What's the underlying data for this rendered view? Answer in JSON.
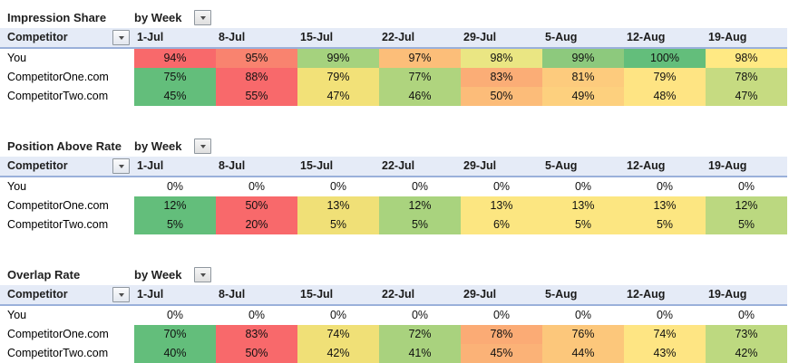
{
  "colors": {
    "header_bg": "#E5EBF7",
    "header_border": "#9AB0DA",
    "dropdown_border": "#8F979F",
    "scale_red": "#F8696B",
    "scale_yellow": "#FFEB84",
    "scale_green": "#63BE7B",
    "no_fill": "#FFFFFF"
  },
  "tables": [
    {
      "title": "Impression Share",
      "subtitle": "by Week",
      "corner_label": "Competitor",
      "columns": [
        "1-Jul",
        "8-Jul",
        "15-Jul",
        "22-Jul",
        "29-Jul",
        "5-Aug",
        "12-Aug",
        "19-Aug"
      ],
      "rows": [
        {
          "label": "You",
          "values": [
            "94%",
            "95%",
            "99%",
            "97%",
            "98%",
            "99%",
            "100%",
            "98%"
          ],
          "colors": [
            "#F8696B",
            "#F9836F",
            "#A5D27E",
            "#FCBE79",
            "#EAE683",
            "#8DC97D",
            "#63BE7B",
            "#FFE983"
          ]
        },
        {
          "label": "CompetitorOne.com",
          "values": [
            "75%",
            "88%",
            "79%",
            "77%",
            "83%",
            "81%",
            "79%",
            "78%"
          ],
          "colors": [
            "#63BE7B",
            "#F8696B",
            "#F2E178",
            "#AFD47E",
            "#FBAD76",
            "#FDCB7D",
            "#FEE483",
            "#C6DB81"
          ]
        },
        {
          "label": "CompetitorTwo.com",
          "values": [
            "45%",
            "55%",
            "47%",
            "46%",
            "50%",
            "49%",
            "48%",
            "47%"
          ],
          "colors": [
            "#63BE7B",
            "#F8696B",
            "#F2E178",
            "#AFD47E",
            "#FCBC79",
            "#FDD07E",
            "#FEE483",
            "#C6DB81"
          ]
        }
      ]
    },
    {
      "title": "Position Above Rate",
      "subtitle": "by Week",
      "corner_label": "Competitor",
      "columns": [
        "1-Jul",
        "8-Jul",
        "15-Jul",
        "22-Jul",
        "29-Jul",
        "5-Aug",
        "12-Aug",
        "19-Aug"
      ],
      "rows": [
        {
          "label": "You",
          "values": [
            "0%",
            "0%",
            "0%",
            "0%",
            "0%",
            "0%",
            "0%",
            "0%"
          ],
          "colors": [
            "#FFFFFF",
            "#FFFFFF",
            "#FFFFFF",
            "#FFFFFF",
            "#FFFFFF",
            "#FFFFFF",
            "#FFFFFF",
            "#FFFFFF"
          ]
        },
        {
          "label": "CompetitorOne.com",
          "values": [
            "12%",
            "50%",
            "13%",
            "12%",
            "13%",
            "13%",
            "13%",
            "12%"
          ],
          "colors": [
            "#63BE7B",
            "#F8696B",
            "#F0E077",
            "#A9D37E",
            "#FCE681",
            "#FCE681",
            "#FCE681",
            "#BBD880"
          ]
        },
        {
          "label": "CompetitorTwo.com",
          "values": [
            "5%",
            "20%",
            "5%",
            "5%",
            "6%",
            "5%",
            "5%",
            "5%"
          ],
          "colors": [
            "#63BE7B",
            "#F8696B",
            "#F0E077",
            "#A9D37E",
            "#FCE681",
            "#FCE681",
            "#FCE681",
            "#BBD880"
          ]
        }
      ]
    },
    {
      "title": "Overlap Rate",
      "subtitle": "by Week",
      "corner_label": "Competitor",
      "columns": [
        "1-Jul",
        "8-Jul",
        "15-Jul",
        "22-Jul",
        "29-Jul",
        "5-Aug",
        "12-Aug",
        "19-Aug"
      ],
      "rows": [
        {
          "label": "You",
          "values": [
            "0%",
            "0%",
            "0%",
            "0%",
            "0%",
            "0%",
            "0%",
            "0%"
          ],
          "colors": [
            "#FFFFFF",
            "#FFFFFF",
            "#FFFFFF",
            "#FFFFFF",
            "#FFFFFF",
            "#FFFFFF",
            "#FFFFFF",
            "#FFFFFF"
          ]
        },
        {
          "label": "CompetitorOne.com",
          "values": [
            "70%",
            "83%",
            "74%",
            "72%",
            "78%",
            "76%",
            "74%",
            "73%"
          ],
          "colors": [
            "#63BE7B",
            "#F8696B",
            "#F0E077",
            "#A9D27E",
            "#FBAB75",
            "#FCC77B",
            "#FEE583",
            "#BDD980"
          ]
        },
        {
          "label": "CompetitorTwo.com",
          "values": [
            "40%",
            "50%",
            "42%",
            "41%",
            "45%",
            "44%",
            "43%",
            "42%"
          ],
          "colors": [
            "#63BE7B",
            "#F8696B",
            "#F0E077",
            "#A9D27E",
            "#FBB277",
            "#FCC77B",
            "#FEE583",
            "#BDD980"
          ]
        }
      ]
    }
  ]
}
